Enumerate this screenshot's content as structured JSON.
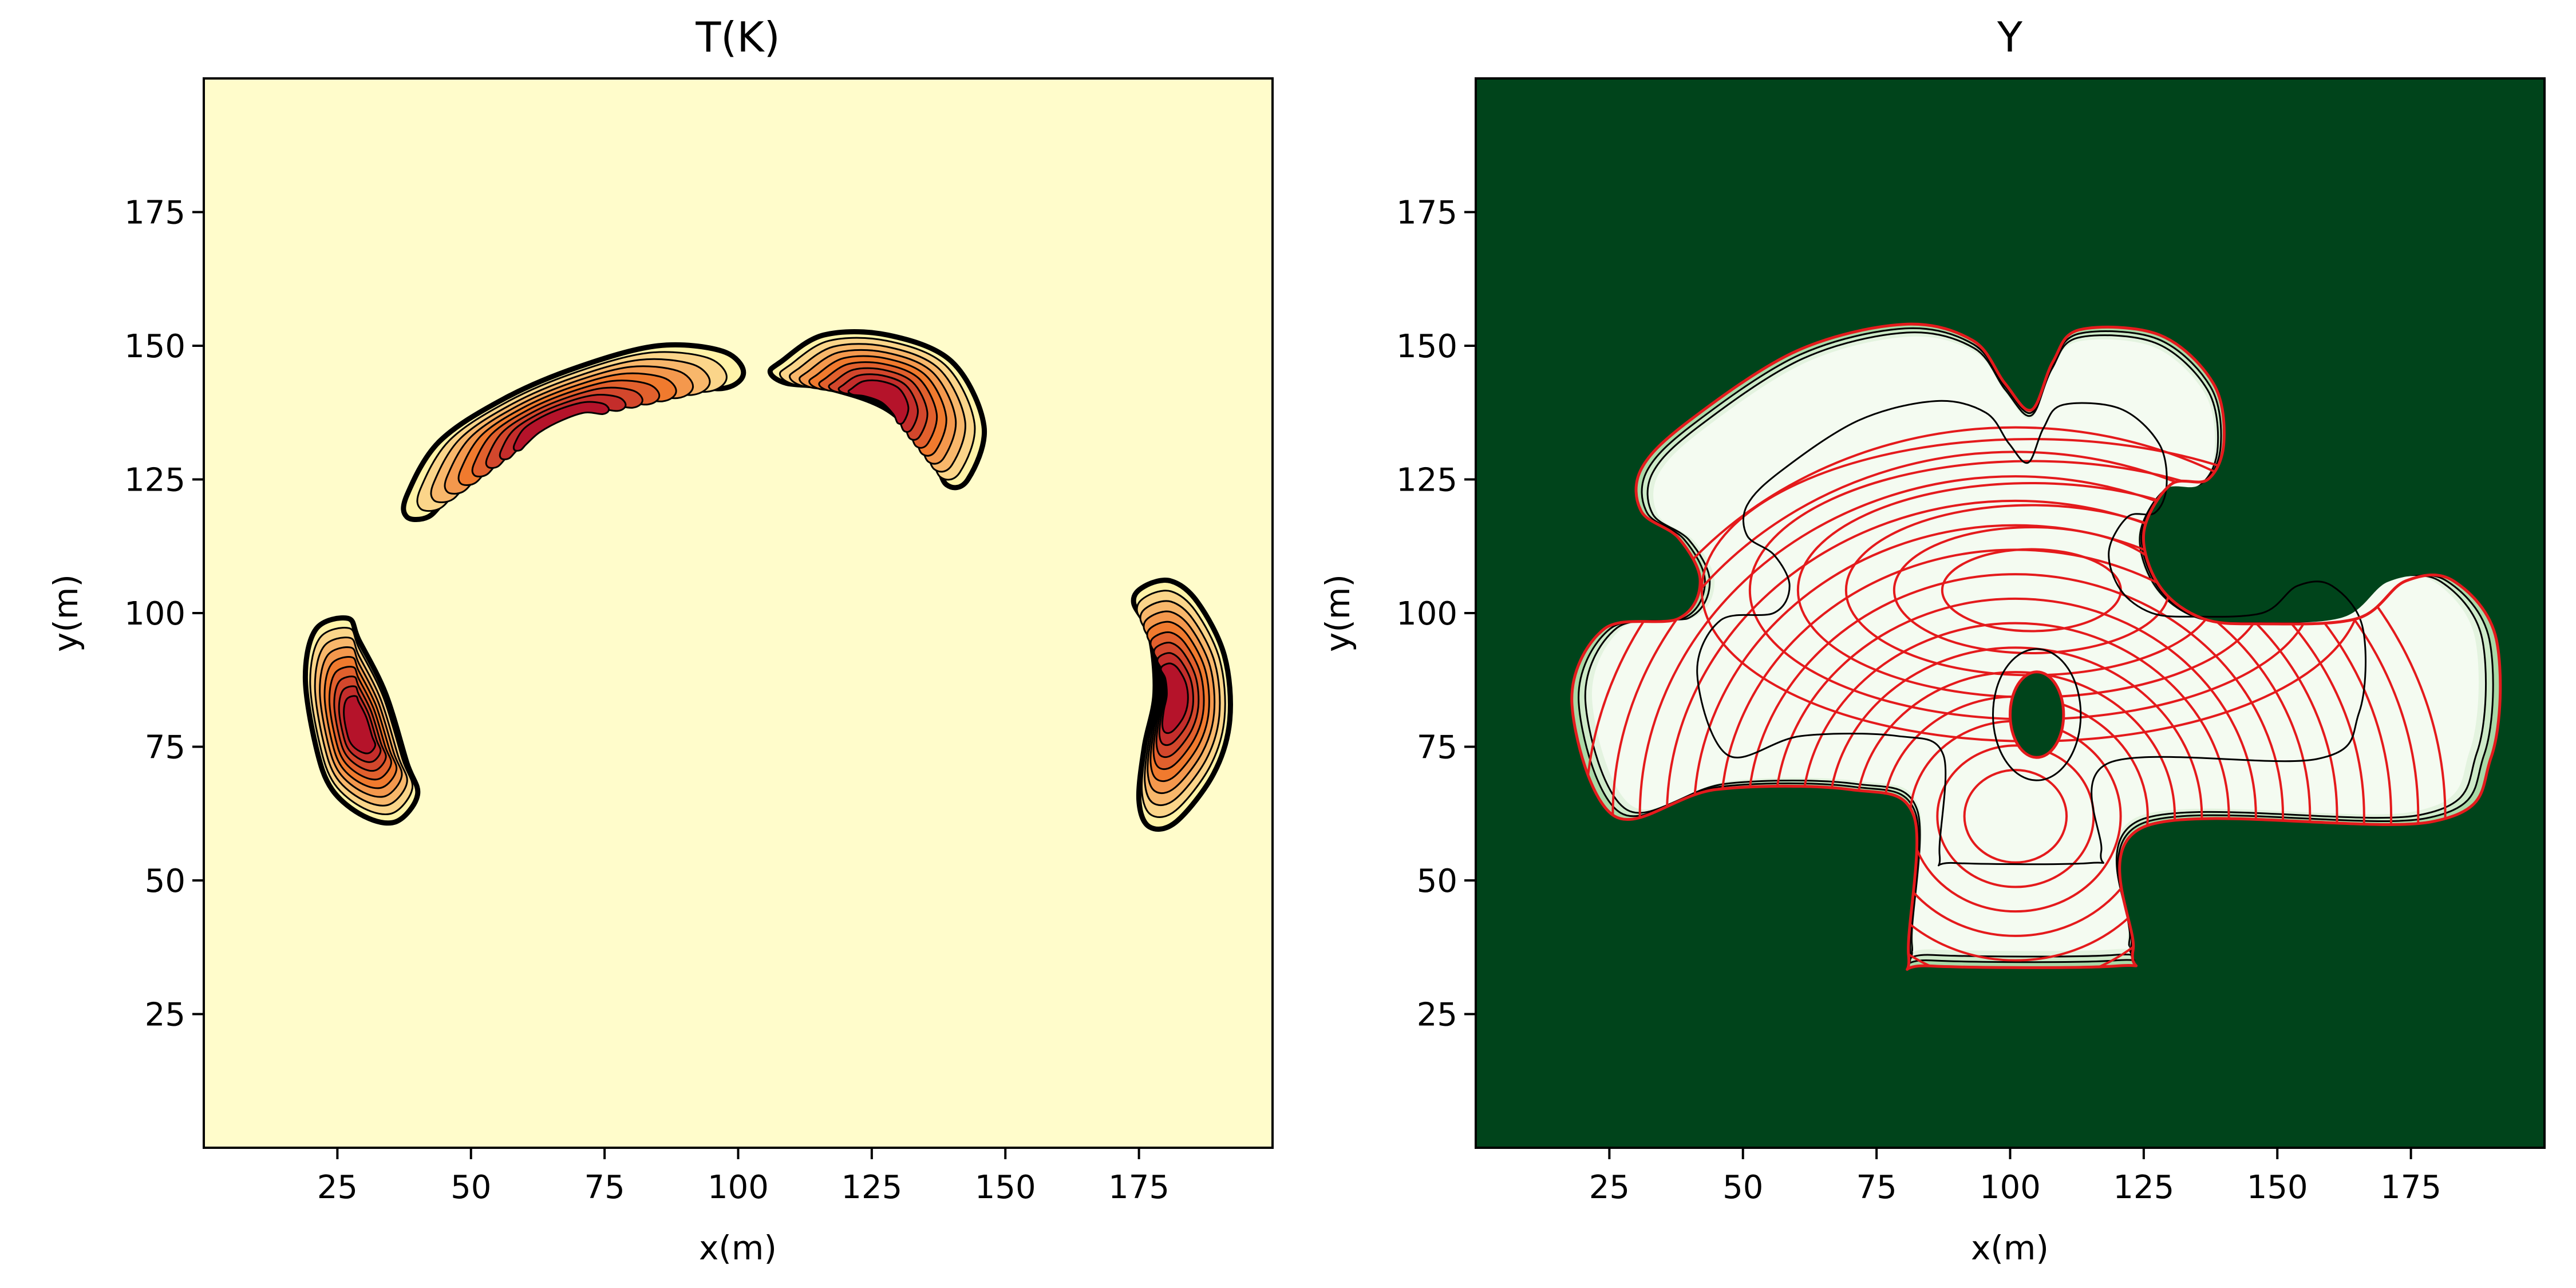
{
  "colors": {
    "t_background": "#FFFCCB",
    "t_low": "#FFF3A8",
    "t_mid": "#F07A2E",
    "t_high": "#B5132A",
    "y_background": "#00441B",
    "y_interior": "#F4FBF1",
    "y_contour": "#E41A1C",
    "contour_line": "#000000"
  },
  "chart_data": [
    {
      "type": "heatmap",
      "title": "T(K)",
      "xlabel": "x(m)",
      "ylabel": "y(m)",
      "xlim": [
        0,
        200
      ],
      "ylim": [
        0,
        200
      ],
      "xticks": [
        25,
        50,
        75,
        100,
        125,
        150,
        175
      ],
      "yticks": [
        25,
        50,
        75,
        100,
        125,
        150,
        175
      ],
      "colormap": "YlOrRd",
      "grid": false,
      "regions": [
        {
          "name": "",
          "outline": [
            [
              38,
              122
            ],
            [
              44,
              132
            ],
            [
              56,
              140
            ],
            [
              70,
              146
            ],
            [
              85,
              150
            ],
            [
              97,
              149
            ],
            [
              101,
              145
            ],
            [
              97,
              142
            ],
            [
              85,
              143
            ],
            [
              70,
              138
            ],
            [
              55,
              130
            ],
            [
              46,
              122
            ],
            [
              42,
              118
            ],
            [
              38,
              118
            ]
          ]
        },
        {
          "name": "",
          "outline": [
            [
              108,
              147
            ],
            [
              116,
              152
            ],
            [
              128,
              152
            ],
            [
              140,
              147
            ],
            [
              146,
              135
            ],
            [
              143,
              125
            ],
            [
              139,
              124
            ],
            [
              136,
              130
            ],
            [
              128,
              138
            ],
            [
              117,
              142
            ],
            [
              109,
              143
            ],
            [
              106,
              145
            ]
          ]
        },
        {
          "name": "",
          "outline": [
            [
              21,
              75
            ],
            [
              19,
              88
            ],
            [
              21,
              97
            ],
            [
              27,
              99
            ],
            [
              29,
              95
            ],
            [
              34,
              85
            ],
            [
              38,
              72
            ],
            [
              40,
              66
            ],
            [
              36,
              61
            ],
            [
              30,
              62
            ],
            [
              24,
              67
            ]
          ]
        },
        {
          "name": "",
          "outline": [
            [
              176,
              105
            ],
            [
              181,
              106
            ],
            [
              186,
              102
            ],
            [
              191,
              92
            ],
            [
              192,
              80
            ],
            [
              189,
              70
            ],
            [
              182,
              61
            ],
            [
              177,
              60
            ],
            [
              175,
              65
            ],
            [
              176,
              75
            ],
            [
              178,
              85
            ],
            [
              177,
              96
            ],
            [
              174,
              102
            ]
          ]
        }
      ]
    },
    {
      "type": "heatmap",
      "title": "Y",
      "xlabel": "x(m)",
      "ylabel": "y(m)",
      "xlim": [
        0,
        200
      ],
      "ylim": [
        0,
        200
      ],
      "xticks": [
        25,
        50,
        75,
        100,
        125,
        150,
        175
      ],
      "yticks": [
        25,
        50,
        75,
        100,
        125,
        150,
        175
      ],
      "colormap": "Greens",
      "grid": false,
      "outline": [
        [
          26,
          62
        ],
        [
          45,
          67
        ],
        [
          70,
          67
        ],
        [
          82,
          62
        ],
        [
          81,
          36
        ],
        [
          85,
          34
        ],
        [
          120,
          34
        ],
        [
          123,
          37
        ],
        [
          125,
          60
        ],
        [
          179,
          61
        ],
        [
          190,
          73
        ],
        [
          191,
          95
        ],
        [
          183,
          106
        ],
        [
          174,
          106
        ],
        [
          165,
          99
        ],
        [
          147,
          98
        ],
        [
          136,
          99
        ],
        [
          128,
          105
        ],
        [
          125,
          115
        ],
        [
          130,
          124
        ],
        [
          137,
          125
        ],
        [
          140,
          132
        ],
        [
          138,
          143
        ],
        [
          128,
          152
        ],
        [
          113,
          153
        ],
        [
          108,
          147
        ],
        [
          104,
          138
        ],
        [
          99,
          143
        ],
        [
          93,
          151
        ],
        [
          80,
          154
        ],
        [
          60,
          149
        ],
        [
          40,
          136
        ],
        [
          31,
          127
        ],
        [
          31,
          119
        ],
        [
          38,
          114
        ],
        [
          42,
          106
        ],
        [
          38,
          99
        ],
        [
          24,
          97
        ],
        [
          18,
          83
        ]
      ],
      "hole": {
        "center": [
          105,
          81
        ],
        "radius_x": 5,
        "radius_y": 8
      },
      "ring_centers": [
        [
          101,
          62
        ],
        [
          104,
          100
        ]
      ]
    }
  ]
}
